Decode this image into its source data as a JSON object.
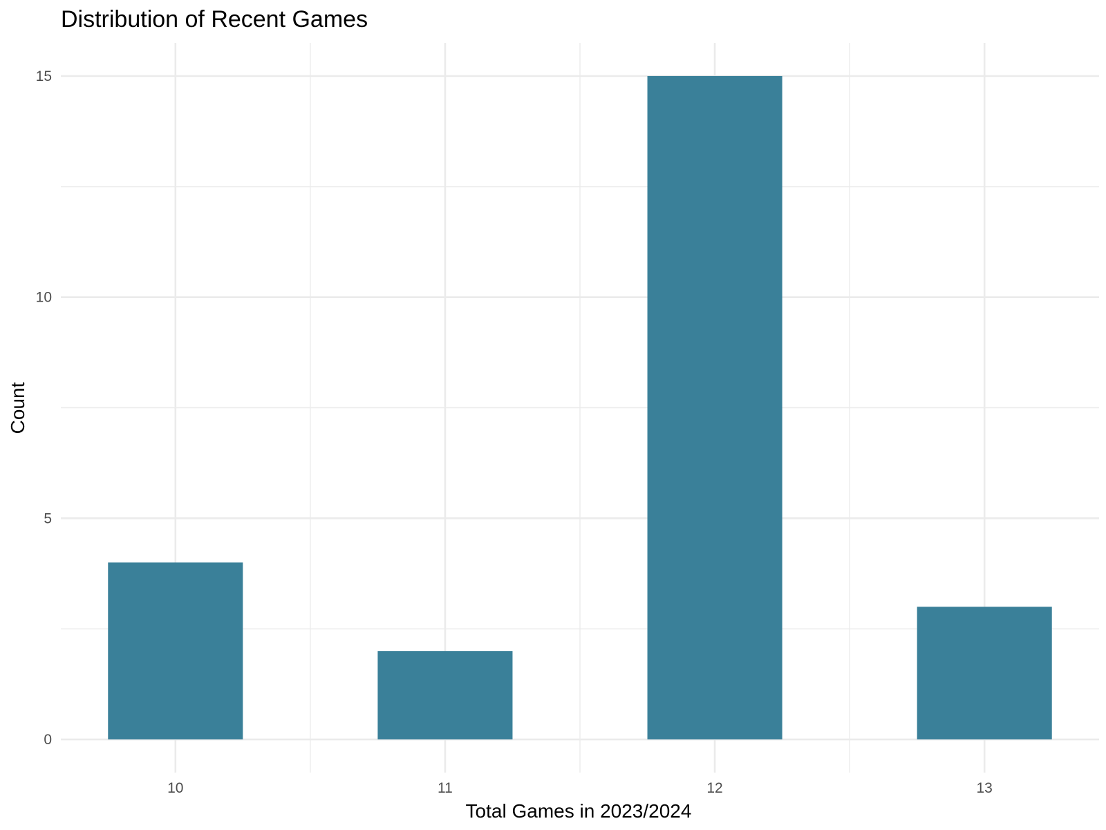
{
  "chart_data": {
    "type": "bar",
    "title": "Distribution of Recent Games",
    "xlabel": "Total Games in 2023/2024",
    "ylabel": "Count",
    "categories": [
      "10",
      "11",
      "12",
      "13"
    ],
    "values": [
      4,
      2,
      15,
      3
    ],
    "x_ticks": [
      10,
      11,
      12,
      13
    ],
    "y_ticks": [
      "0",
      "5",
      "10",
      "15"
    ],
    "ylim": [
      -0.75,
      15.75
    ],
    "xlim": [
      9.575,
      13.425
    ],
    "bar_width": 0.5,
    "grid": true,
    "legend": "none",
    "bar_color": "#3A8099",
    "grid_color": "#EBEBEB"
  }
}
